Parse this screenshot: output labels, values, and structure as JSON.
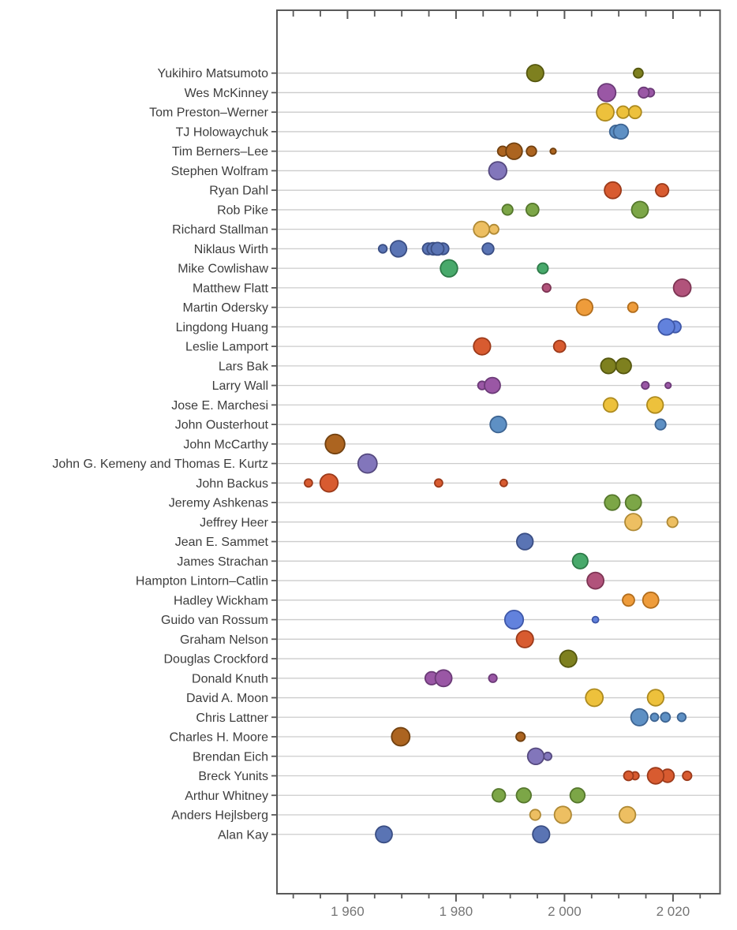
{
  "chart_data": {
    "type": "scatter",
    "title": "",
    "xlabel": "",
    "ylabel": "",
    "x_axis": {
      "major_ticks": [
        {
          "year": 1960,
          "label": "1 960"
        },
        {
          "year": 1980,
          "label": "1 980"
        },
        {
          "year": 2000,
          "label": "2 000"
        },
        {
          "year": 2020,
          "label": "2 020"
        }
      ],
      "minor_tick_years": [
        1950,
        1955,
        1965,
        1970,
        1975,
        1985,
        1990,
        1995,
        2005,
        2010,
        2015,
        2025
      ],
      "range": [
        1947,
        2029
      ]
    },
    "palette": {
      "olive": {
        "fill": "#7e801f",
        "stroke": "#55570f"
      },
      "orchid": {
        "fill": "#9a57a5",
        "stroke": "#6b3a77"
      },
      "gold": {
        "fill": "#edc13c",
        "stroke": "#ad8a1e"
      },
      "steel": {
        "fill": "#5e90c4",
        "stroke": "#3d6492"
      },
      "brown": {
        "fill": "#ac6420",
        "stroke": "#71400f"
      },
      "slate": {
        "fill": "#8276bb",
        "stroke": "#55497f"
      },
      "vermillion": {
        "fill": "#d85b30",
        "stroke": "#9c3a1a"
      },
      "yellowgreen": {
        "fill": "#7ca647",
        "stroke": "#55772c"
      },
      "palegold": {
        "fill": "#edbf62",
        "stroke": "#b08a35"
      },
      "emerald": {
        "fill": "#48a96b",
        "stroke": "#2d7a48"
      },
      "raspberry": {
        "fill": "#b1537b",
        "stroke": "#7d3453"
      },
      "orange": {
        "fill": "#ee9c3b",
        "stroke": "#b26d1c"
      },
      "periwinkle": {
        "fill": "#6282dd",
        "stroke": "#3e57a8"
      },
      "denim": {
        "fill": "#5a74b4",
        "stroke": "#3a4e84"
      }
    },
    "rows": [
      {
        "name": "Yukihiro Matsumoto",
        "color": "olive",
        "bubbles": [
          [
            1994.6,
            10.7
          ],
          [
            2013.6,
            6.0
          ]
        ]
      },
      {
        "name": "Wes McKinney",
        "color": "orchid",
        "bubbles": [
          [
            2007.8,
            11.3
          ],
          [
            2014.6,
            6.7
          ],
          [
            2015.8,
            5.3
          ]
        ]
      },
      {
        "name": "Tom Preston–Werner",
        "color": "gold",
        "bubbles": [
          [
            2007.5,
            11.0
          ],
          [
            2010.8,
            7.7
          ],
          [
            2013.0,
            8.0
          ]
        ]
      },
      {
        "name": "TJ Holowaychuk",
        "color": "steel",
        "bubbles": [
          [
            2009.5,
            8.0
          ],
          [
            2010.4,
            9.3
          ]
        ]
      },
      {
        "name": "Tim Berners–Lee",
        "color": "brown",
        "bubbles": [
          [
            1988.6,
            6.3
          ],
          [
            1990.7,
            10.3
          ],
          [
            1993.9,
            6.3
          ],
          [
            1997.9,
            3.7
          ]
        ]
      },
      {
        "name": "Stephen Wolfram",
        "color": "slate",
        "bubbles": [
          [
            1987.7,
            11.3
          ]
        ]
      },
      {
        "name": "Ryan Dahl",
        "color": "vermillion",
        "bubbles": [
          [
            2008.9,
            10.5
          ],
          [
            2018.0,
            8.2
          ]
        ]
      },
      {
        "name": "Rob Pike",
        "color": "yellowgreen",
        "bubbles": [
          [
            1989.5,
            6.7
          ],
          [
            1994.1,
            8.0
          ],
          [
            2013.9,
            10.5
          ]
        ]
      },
      {
        "name": "Richard Stallman",
        "color": "palegold",
        "bubbles": [
          [
            1984.7,
            10.0
          ],
          [
            1987.0,
            6.0
          ]
        ]
      },
      {
        "name": "Niklaus Wirth",
        "color": "denim",
        "bubbles": [
          [
            1966.5,
            5.3
          ],
          [
            1969.4,
            10.3
          ],
          [
            1974.9,
            7.3
          ],
          [
            1975.8,
            7.7
          ],
          [
            1976.6,
            8.0
          ],
          [
            1977.6,
            7.3
          ],
          [
            1985.9,
            7.3
          ]
        ]
      },
      {
        "name": "Mike Cowlishaw",
        "color": "emerald",
        "bubbles": [
          [
            1978.7,
            10.8
          ],
          [
            1996.0,
            6.7
          ]
        ]
      },
      {
        "name": "Matthew Flatt",
        "color": "raspberry",
        "bubbles": [
          [
            1996.7,
            5.3
          ],
          [
            2021.7,
            11.0
          ]
        ]
      },
      {
        "name": "Martin Odersky",
        "color": "orange",
        "bubbles": [
          [
            2003.7,
            10.3
          ],
          [
            2012.6,
            6.3
          ]
        ]
      },
      {
        "name": "Lingdong Huang",
        "color": "periwinkle",
        "bubbles": [
          [
            2018.8,
            10.3
          ],
          [
            2020.4,
            7.3
          ]
        ]
      },
      {
        "name": "Leslie Lamport",
        "color": "vermillion",
        "bubbles": [
          [
            1984.8,
            10.7
          ],
          [
            1999.1,
            7.5
          ]
        ]
      },
      {
        "name": "Lars Bak",
        "color": "olive",
        "bubbles": [
          [
            2008.1,
            9.7
          ],
          [
            2010.9,
            9.7
          ]
        ]
      },
      {
        "name": "Larry Wall",
        "color": "orchid",
        "bubbles": [
          [
            1984.8,
            5.3
          ],
          [
            1986.7,
            10.0
          ],
          [
            2014.9,
            4.7
          ],
          [
            2019.1,
            3.7
          ]
        ]
      },
      {
        "name": "Jose E. Marchesi",
        "color": "gold",
        "bubbles": [
          [
            2008.5,
            9.0
          ],
          [
            2016.7,
            10.3
          ]
        ]
      },
      {
        "name": "John Ousterhout",
        "color": "steel",
        "bubbles": [
          [
            1987.8,
            10.3
          ],
          [
            2017.7,
            6.7
          ]
        ]
      },
      {
        "name": "John McCarthy",
        "color": "brown",
        "bubbles": [
          [
            1957.7,
            12.3
          ]
        ]
      },
      {
        "name": "John G. Kemeny and Thomas E. Kurtz",
        "color": "slate",
        "bubbles": [
          [
            1963.7,
            12.0
          ]
        ]
      },
      {
        "name": "John Backus",
        "color": "vermillion",
        "bubbles": [
          [
            1952.8,
            5.0
          ],
          [
            1956.6,
            11.3
          ],
          [
            1976.8,
            5.0
          ],
          [
            1988.8,
            4.5
          ]
        ]
      },
      {
        "name": "Jeremy Ashkenas",
        "color": "yellowgreen",
        "bubbles": [
          [
            2008.8,
            9.7
          ],
          [
            2012.7,
            10.0
          ]
        ]
      },
      {
        "name": "Jeffrey Heer",
        "color": "palegold",
        "bubbles": [
          [
            2012.7,
            10.7
          ],
          [
            2019.9,
            6.7
          ]
        ]
      },
      {
        "name": "Jean E. Sammet",
        "color": "denim",
        "bubbles": [
          [
            1992.7,
            10.3
          ]
        ]
      },
      {
        "name": "James Strachan",
        "color": "emerald",
        "bubbles": [
          [
            2002.9,
            9.7
          ]
        ]
      },
      {
        "name": "Hampton Lintorn–Catlin",
        "color": "raspberry",
        "bubbles": [
          [
            2005.7,
            10.5
          ]
        ]
      },
      {
        "name": "Hadley Wickham",
        "color": "orange",
        "bubbles": [
          [
            2011.8,
            7.5
          ],
          [
            2015.9,
            10.0
          ]
        ]
      },
      {
        "name": "Guido van Rossum",
        "color": "periwinkle",
        "bubbles": [
          [
            1990.7,
            11.7
          ],
          [
            2005.7,
            4.0
          ]
        ]
      },
      {
        "name": "Graham Nelson",
        "color": "vermillion",
        "bubbles": [
          [
            1992.7,
            10.7
          ]
        ]
      },
      {
        "name": "Douglas Crockford",
        "color": "olive",
        "bubbles": [
          [
            2000.7,
            10.7
          ]
        ]
      },
      {
        "name": "Donald Knuth",
        "color": "orchid",
        "bubbles": [
          [
            1975.5,
            8.2
          ],
          [
            1977.7,
            10.5
          ],
          [
            1986.8,
            5.2
          ]
        ]
      },
      {
        "name": "David A. Moon",
        "color": "gold",
        "bubbles": [
          [
            2005.5,
            11.0
          ],
          [
            2016.8,
            10.3
          ]
        ]
      },
      {
        "name": "Chris Lattner",
        "color": "steel",
        "bubbles": [
          [
            2013.8,
            10.7
          ],
          [
            2016.6,
            5.0
          ],
          [
            2018.6,
            6.0
          ],
          [
            2021.6,
            5.3
          ]
        ]
      },
      {
        "name": "Charles H. Moore",
        "color": "brown",
        "bubbles": [
          [
            1969.8,
            11.5
          ],
          [
            1991.9,
            5.7
          ]
        ]
      },
      {
        "name": "Brendan Eich",
        "color": "slate",
        "bubbles": [
          [
            1994.7,
            10.3
          ],
          [
            1996.9,
            5.0
          ]
        ]
      },
      {
        "name": "Breck Yunits",
        "color": "vermillion",
        "bubbles": [
          [
            2011.8,
            6.0
          ],
          [
            2013.0,
            5.0
          ],
          [
            2016.8,
            10.3
          ],
          [
            2019.0,
            8.3
          ],
          [
            2022.6,
            5.7
          ]
        ]
      },
      {
        "name": "Arthur Whitney",
        "color": "yellowgreen",
        "bubbles": [
          [
            1987.9,
            8.3
          ],
          [
            1992.5,
            9.3
          ],
          [
            2002.4,
            9.3
          ]
        ]
      },
      {
        "name": "Anders Hejlsberg",
        "color": "palegold",
        "bubbles": [
          [
            1994.6,
            6.7
          ],
          [
            1999.7,
            10.7
          ],
          [
            2011.6,
            10.3
          ]
        ]
      },
      {
        "name": "Alan Kay",
        "color": "denim",
        "bubbles": [
          [
            1966.7,
            10.5
          ],
          [
            1995.7,
            10.7
          ]
        ]
      }
    ]
  },
  "styles": {
    "background": "#ffffff",
    "frame_color": "#595959",
    "gridline_color": "#cccccc",
    "x_label_color": "#757575",
    "y_label_color": "#3d3d3d"
  }
}
